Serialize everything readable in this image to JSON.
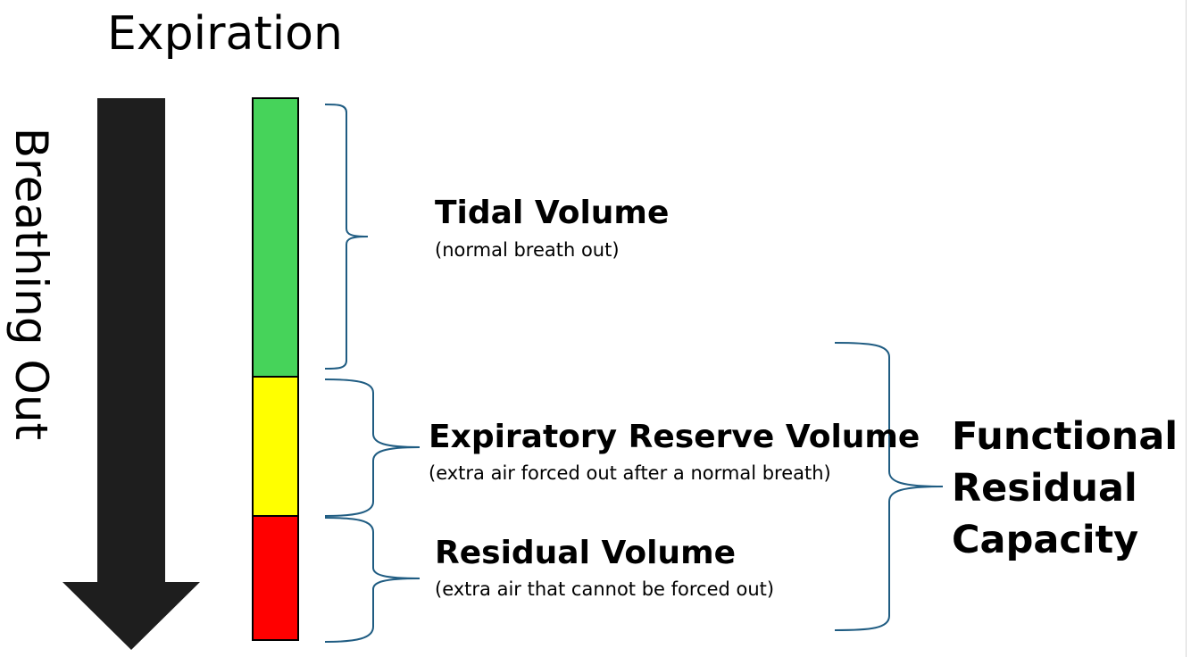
{
  "title": "Expiration",
  "side_label": "Breathing Out",
  "volumes": [
    {
      "name": "Tidal Volume",
      "note": "(normal breath out)",
      "color": "#46d35a"
    },
    {
      "name": "Expiratory Reserve Volume",
      "note": "(extra air forced out after a normal breath)",
      "color": "#ffff00"
    },
    {
      "name": "Residual Volume",
      "note": "(extra air that cannot be forced out)",
      "color": "#ff0000"
    }
  ],
  "capacity": {
    "lines": [
      "Functional",
      "Residual",
      "Capacity"
    ]
  },
  "colors": {
    "arrow": "#1e1e1e",
    "brace": "#1f5c82",
    "outline": "#000000"
  }
}
